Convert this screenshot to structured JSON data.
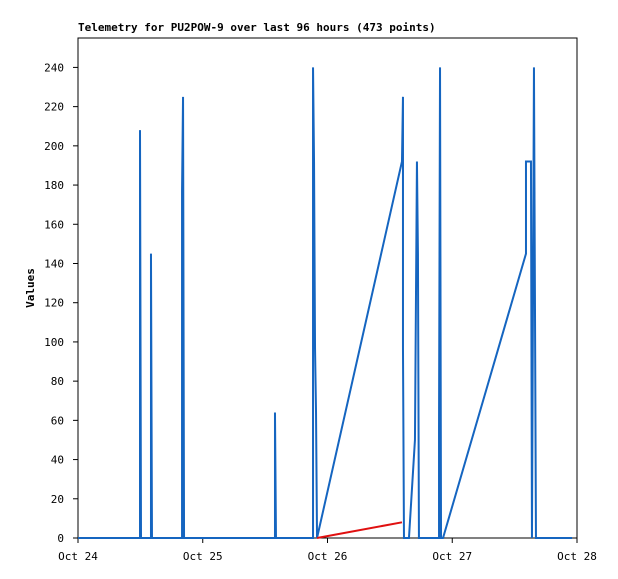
{
  "chart_data": {
    "type": "line",
    "title": "Telemetry for PU2POW-9 over last 96 hours (473 points)",
    "y_label": "Values",
    "xlim": [
      24,
      28
    ],
    "xticks": [
      {
        "value": 24,
        "label": "Oct 24"
      },
      {
        "value": 25,
        "label": "Oct 25"
      },
      {
        "value": 26,
        "label": "Oct 26"
      },
      {
        "value": 27,
        "label": "Oct 27"
      },
      {
        "value": 28,
        "label": "Oct 28"
      }
    ],
    "ylim": [
      0,
      255
    ],
    "yticks": [
      0,
      20,
      40,
      60,
      80,
      100,
      120,
      140,
      160,
      180,
      200,
      220,
      240
    ],
    "grid": false,
    "series": [
      {
        "color": "#1565c0",
        "x": [
          24.0,
          24.497,
          24.497,
          24.505,
          24.585,
          24.585,
          24.593,
          24.834,
          24.834,
          24.842,
          24.85,
          25.579,
          25.579,
          25.587,
          25.884,
          25.884,
          25.892,
          25.9,
          25.908,
          25.916,
          26.597,
          26.605,
          26.605,
          26.613,
          26.653,
          26.701,
          26.717,
          26.725,
          26.733,
          26.894,
          26.894,
          26.902,
          26.91,
          26.926,
          27.591,
          27.591,
          27.631,
          27.639,
          27.655,
          27.663,
          27.671,
          27.96
        ],
        "values": [
          0,
          0,
          208,
          0,
          0,
          145,
          0,
          0,
          177,
          225,
          0,
          0,
          64,
          0,
          0,
          240,
          192,
          97,
          64,
          0,
          192,
          225,
          97,
          0,
          0,
          50,
          192,
          145,
          0,
          0,
          57,
          240,
          0,
          0,
          145,
          192,
          192,
          0,
          240,
          120,
          0,
          0
        ]
      },
      {
        "color": "#e01010",
        "x": [
          25.916,
          26.597
        ],
        "values": [
          0,
          8
        ]
      }
    ]
  }
}
